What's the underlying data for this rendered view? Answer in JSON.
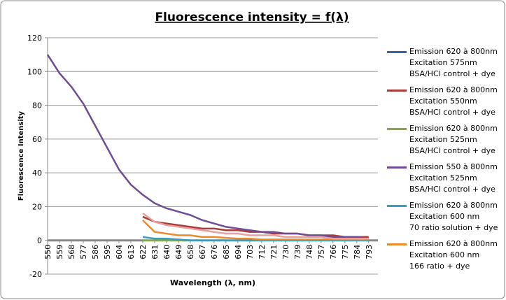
{
  "chart_data": {
    "type": "line",
    "title": "Fluorescence intensity = f(λ)",
    "x_label": "Wavelength (λ, nm)",
    "y_label": "Fluorescence Intensity",
    "x": [
      550,
      559,
      568,
      577,
      586,
      595,
      604,
      613,
      622,
      631,
      640,
      649,
      658,
      667,
      676,
      685,
      694,
      703,
      712,
      721,
      730,
      739,
      748,
      757,
      766,
      775,
      784,
      793
    ],
    "xlim": [
      550,
      800
    ],
    "xticks": [
      550,
      559,
      568,
      577,
      586,
      595,
      604,
      613,
      622,
      631,
      640,
      649,
      658,
      667,
      676,
      685,
      694,
      703,
      712,
      721,
      730,
      739,
      748,
      757,
      766,
      775,
      784,
      793
    ],
    "ylim": [
      -20,
      120
    ],
    "yticks": [
      -20,
      0,
      20,
      40,
      60,
      80,
      100,
      120
    ],
    "grid": true,
    "series": [
      {
        "name": "Emission 620 à 800nm\nExcitation 575nm\nBSA/HCl control + dye",
        "color": "#3a64a8",
        "values": [
          null,
          null,
          null,
          null,
          null,
          null,
          null,
          null,
          0,
          0,
          0,
          0,
          0,
          0,
          0,
          0,
          0,
          0,
          0,
          0,
          0,
          0,
          0,
          0,
          0,
          0,
          0,
          0
        ]
      },
      {
        "name": "Emission 620 à 800nm\nExcitation 550nm\nBSA/HCl control + dye",
        "color": "#a83a38",
        "values": [
          null,
          null,
          null,
          null,
          null,
          null,
          null,
          null,
          14,
          11,
          10,
          9,
          8,
          7,
          7,
          6,
          6,
          5,
          5,
          4,
          4,
          4,
          3,
          3,
          3,
          2,
          2,
          2
        ]
      },
      {
        "name": "Emission 620 à 800nm\nExcitation 525nm\nBSA/HCl control + dye",
        "color": "#86a845",
        "values": [
          null,
          null,
          null,
          null,
          null,
          null,
          null,
          null,
          0,
          0,
          0,
          0,
          0,
          0,
          0,
          0,
          0,
          0,
          0,
          0,
          0,
          0,
          0,
          0,
          0,
          0,
          0,
          0
        ]
      },
      {
        "name": "Emission 550 à 800nm\nExcitation 525nm\nBSA/HCl control + dye",
        "color": "#6e4c96",
        "values": [
          110,
          99,
          91,
          81,
          68,
          55,
          42,
          33,
          27,
          22,
          19,
          17,
          15,
          12,
          10,
          8,
          7,
          6,
          5,
          5,
          4,
          4,
          3,
          3,
          2,
          2,
          2,
          1
        ]
      },
      {
        "name": "Emission 620 à 800nm\nExcitation 600 nm\n70 ratio solution + dye",
        "color": "#3e9bc0",
        "values": [
          null,
          null,
          null,
          null,
          null,
          null,
          null,
          null,
          2,
          1,
          1,
          0.5,
          0,
          0,
          0,
          0,
          0,
          0,
          0,
          0,
          0,
          0,
          0,
          0,
          0,
          0,
          0,
          0
        ]
      },
      {
        "name": "Emission 620 à 800nm\nExcitation 600 nm\n166 ratio + dye",
        "color": "#e98a2c",
        "values": [
          null,
          null,
          null,
          null,
          null,
          null,
          null,
          null,
          12,
          5,
          4,
          3,
          3,
          2,
          2,
          1.5,
          1,
          1,
          0.5,
          0.5,
          0.5,
          0.5,
          0.5,
          0.5,
          0.5,
          0.5,
          0.5,
          0.5
        ]
      },
      {
        "color": "#e8a0a0",
        "values": [
          null,
          null,
          null,
          null,
          null,
          null,
          null,
          null,
          16,
          11,
          9,
          8,
          7,
          6,
          5,
          4,
          4,
          3,
          3,
          3,
          2,
          2,
          2,
          2,
          1,
          1,
          1,
          1
        ]
      }
    ]
  }
}
